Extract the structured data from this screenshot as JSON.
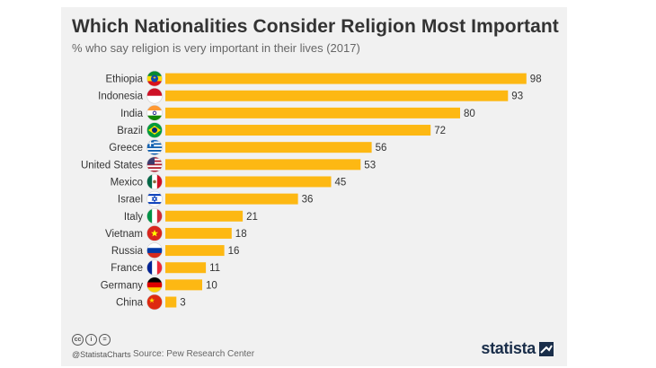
{
  "header": {
    "title": "Which Nationalities Consider Religion Most Important",
    "subtitle": "% who say religion is very important in their lives (2017)"
  },
  "chart_data": {
    "type": "bar",
    "orientation": "horizontal",
    "title": "Which Nationalities Consider Religion Most Important",
    "subtitle": "% who say religion is very important in their lives (2017)",
    "categories": [
      "Ethiopia",
      "Indonesia",
      "India",
      "Brazil",
      "Greece",
      "United States",
      "Mexico",
      "Israel",
      "Italy",
      "Vietnam",
      "Russia",
      "France",
      "Germany",
      "China"
    ],
    "values": [
      98,
      93,
      80,
      72,
      56,
      53,
      45,
      36,
      21,
      18,
      16,
      11,
      10,
      3
    ],
    "xlim": [
      0,
      100
    ],
    "grid": false,
    "legend": "none",
    "bar_color": "#fdb813"
  },
  "flags": [
    "flag-ethiopia-icon",
    "flag-indonesia-icon",
    "flag-india-icon",
    "flag-brazil-icon",
    "flag-greece-icon",
    "flag-united-states-icon",
    "flag-mexico-icon",
    "flag-israel-icon",
    "flag-italy-icon",
    "flag-vietnam-icon",
    "flag-russia-icon",
    "flag-france-icon",
    "flag-germany-icon",
    "flag-china-icon"
  ],
  "footer": {
    "license_icons": [
      "cc",
      "i",
      "="
    ],
    "handle": "@StatistaCharts",
    "source": "Source: Pew Research Center",
    "brand": "statista"
  },
  "colors": {
    "background": "#f1f1f1",
    "bar": "#fdb813",
    "title": "#333333",
    "brand": "#1a2e4a"
  }
}
